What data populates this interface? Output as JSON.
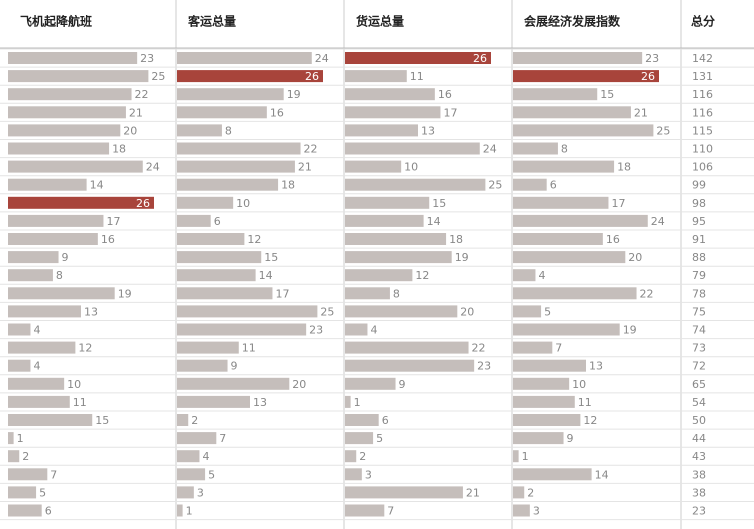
{
  "chart_data": [
    {
      "type": "bar",
      "orientation": "horizontal",
      "title": "飞机起降航班",
      "color": "#c5bebb",
      "highlight_color": "#a8443b",
      "highlight": 8,
      "xlim": [
        0,
        26
      ],
      "categories": [
        null,
        null,
        null,
        null,
        null,
        null,
        null,
        null,
        null,
        null,
        null,
        null,
        null,
        null,
        null,
        null,
        null,
        null,
        null,
        null,
        null,
        null,
        null,
        null,
        null,
        null
      ],
      "values": [
        23,
        25,
        22,
        21,
        20,
        18,
        24,
        14,
        26,
        17,
        16,
        9,
        8,
        19,
        13,
        4,
        12,
        4,
        10,
        11,
        15,
        1,
        2,
        7,
        5,
        6
      ]
    },
    {
      "type": "bar",
      "orientation": "horizontal",
      "title": "客运总量",
      "color": "#c5bebb",
      "highlight_color": "#a8443b",
      "highlight": 1,
      "xlim": [
        0,
        26
      ],
      "categories": [
        null,
        null,
        null,
        null,
        null,
        null,
        null,
        null,
        null,
        null,
        null,
        null,
        null,
        null,
        null,
        null,
        null,
        null,
        null,
        null,
        null,
        null,
        null,
        null,
        null,
        null
      ],
      "values": [
        24,
        26,
        19,
        16,
        8,
        22,
        21,
        18,
        10,
        6,
        12,
        15,
        14,
        17,
        25,
        23,
        11,
        9,
        20,
        13,
        2,
        7,
        4,
        5,
        3,
        1
      ]
    },
    {
      "type": "bar",
      "orientation": "horizontal",
      "title": "货运总量",
      "color": "#c5bebb",
      "highlight_color": "#a8443b",
      "highlight": 0,
      "xlim": [
        0,
        26
      ],
      "categories": [
        null,
        null,
        null,
        null,
        null,
        null,
        null,
        null,
        null,
        null,
        null,
        null,
        null,
        null,
        null,
        null,
        null,
        null,
        null,
        null,
        null,
        null,
        null,
        null,
        null,
        null
      ],
      "values": [
        26,
        11,
        16,
        17,
        13,
        24,
        10,
        25,
        15,
        14,
        18,
        19,
        12,
        8,
        20,
        4,
        22,
        23,
        9,
        1,
        6,
        5,
        2,
        3,
        21,
        7
      ]
    },
    {
      "type": "bar",
      "orientation": "horizontal",
      "title": "会展经济发展指数",
      "color": "#c5bebb",
      "highlight_color": "#a8443b",
      "highlight": 1,
      "xlim": [
        0,
        26
      ],
      "categories": [
        null,
        null,
        null,
        null,
        null,
        null,
        null,
        null,
        null,
        null,
        null,
        null,
        null,
        null,
        null,
        null,
        null,
        null,
        null,
        null,
        null,
        null,
        null,
        null,
        null,
        null
      ],
      "values": [
        23,
        26,
        15,
        21,
        25,
        8,
        18,
        6,
        17,
        24,
        16,
        20,
        4,
        22,
        5,
        19,
        7,
        13,
        10,
        11,
        12,
        9,
        1,
        14,
        2,
        3
      ]
    }
  ],
  "totals": {
    "header": "总分",
    "values": [
      142,
      131,
      116,
      116,
      115,
      110,
      106,
      99,
      98,
      95,
      91,
      88,
      79,
      78,
      75,
      74,
      73,
      72,
      65,
      54,
      50,
      44,
      43,
      38,
      38,
      23
    ]
  }
}
